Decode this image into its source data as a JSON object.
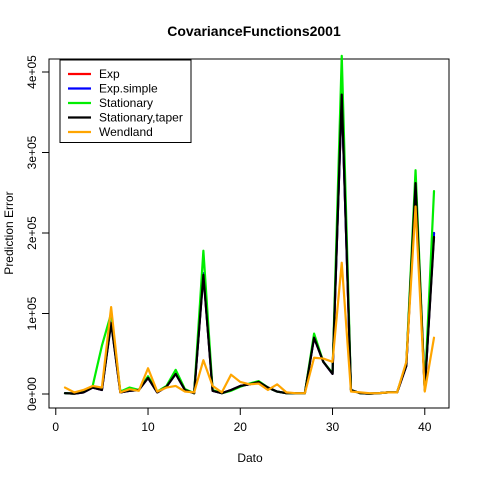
{
  "chart_data": {
    "type": "line",
    "title": "CovarianceFunctions2001",
    "xlabel": "Dato",
    "ylabel": "Prediction Error",
    "xlim": [
      1,
      41
    ],
    "ylim": [
      0,
      420000
    ],
    "x_ticks": [
      0,
      10,
      20,
      30,
      40
    ],
    "x_tick_labels": [
      "0",
      "10",
      "20",
      "30",
      "40"
    ],
    "y_ticks": [
      0,
      100000,
      200000,
      300000,
      400000
    ],
    "y_tick_labels": [
      "0e+00",
      "1e+05",
      "2e+05",
      "3e+05",
      "4e+05"
    ],
    "grid": false,
    "legend_position": "top-left",
    "x": [
      1,
      2,
      3,
      4,
      5,
      6,
      7,
      8,
      9,
      10,
      11,
      12,
      13,
      14,
      15,
      16,
      17,
      18,
      19,
      20,
      21,
      22,
      23,
      24,
      25,
      26,
      27,
      28,
      29,
      30,
      31,
      32,
      33,
      34,
      35,
      36,
      37,
      38,
      39,
      40,
      41
    ],
    "series": [
      {
        "name": "Exp",
        "color": "#ff0000",
        "values": [
          1000,
          500,
          2000,
          8000,
          5000,
          90000,
          2000,
          4000,
          5000,
          20000,
          2000,
          9000,
          25000,
          5000,
          1000,
          150000,
          4000,
          1000,
          5000,
          10000,
          12000,
          15000,
          8000,
          3000,
          1000,
          1000,
          1000,
          70000,
          40000,
          25000,
          370000,
          5000,
          1000,
          500,
          1000,
          2000,
          2000,
          35000,
          260000,
          5000,
          200000
        ]
      },
      {
        "name": "Exp.simple",
        "color": "#0000ff",
        "values": [
          1000,
          500,
          2000,
          8000,
          5000,
          90000,
          2000,
          4000,
          5000,
          20000,
          2000,
          9000,
          25000,
          5000,
          1000,
          150000,
          4000,
          1000,
          5000,
          10000,
          12000,
          15000,
          8000,
          3000,
          1000,
          1000,
          1000,
          70000,
          40000,
          25000,
          370000,
          5000,
          1000,
          500,
          1000,
          2000,
          2000,
          35000,
          260000,
          5000,
          200000
        ]
      },
      {
        "name": "Stationary",
        "color": "#00ee00",
        "values": [
          1000,
          500,
          3000,
          10000,
          60000,
          100000,
          3000,
          8000,
          5000,
          22000,
          3000,
          10000,
          30000,
          6000,
          1000,
          178000,
          5000,
          1000,
          4000,
          9000,
          13000,
          16000,
          8000,
          3000,
          1000,
          1000,
          1000,
          75000,
          40000,
          26000,
          420000,
          5000,
          1000,
          500,
          1000,
          2000,
          2000,
          38000,
          278000,
          5000,
          252000
        ]
      },
      {
        "name": "Stationary,taper",
        "color": "#000000",
        "values": [
          1000,
          500,
          2000,
          8000,
          5000,
          88000,
          2000,
          4000,
          5000,
          20000,
          2000,
          9000,
          25000,
          5000,
          1000,
          148000,
          4000,
          1000,
          5000,
          10000,
          12000,
          15000,
          8000,
          3000,
          1000,
          1000,
          1000,
          70000,
          40000,
          25000,
          372000,
          5000,
          1000,
          500,
          1000,
          2000,
          2000,
          35000,
          262000,
          5000,
          195000
        ]
      },
      {
        "name": "Wendland",
        "color": "#ffa500",
        "values": [
          8000,
          2000,
          5000,
          10000,
          8000,
          108000,
          2000,
          6000,
          4000,
          32000,
          3000,
          8000,
          10000,
          3000,
          2000,
          42000,
          10000,
          2000,
          24000,
          15000,
          12000,
          13000,
          5000,
          12000,
          2000,
          1000,
          1000,
          45000,
          44000,
          40000,
          163000,
          3000,
          2000,
          1000,
          1000,
          2000,
          2000,
          40000,
          233000,
          3000,
          70000
        ]
      }
    ]
  }
}
